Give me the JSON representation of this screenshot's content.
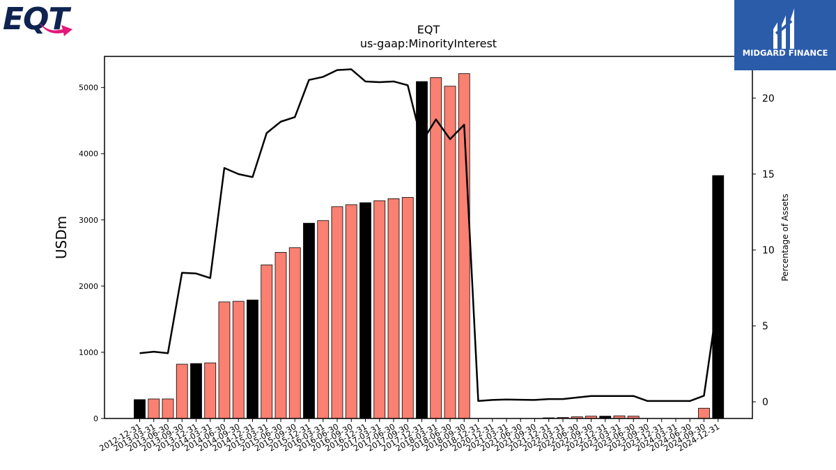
{
  "logos": {
    "eqt_text": "EQT",
    "midgard_text": "MIDGARD FINANCE"
  },
  "chart_data": {
    "type": "bar",
    "title": "EQT",
    "subtitle": "us-gaap:MinorityInterest",
    "ylabel": "USDm",
    "y2label": "Percentage of Assets",
    "ylim": [
      0,
      5470
    ],
    "y2lim": [
      -1.1,
      22.75
    ],
    "yticks": [
      0,
      1000,
      2000,
      3000,
      4000,
      5000
    ],
    "y2ticks": [
      0,
      5,
      10,
      15,
      20
    ],
    "colors": {
      "bar_default": "#fa8072",
      "bar_year_end": "#000000",
      "line": "#000000"
    },
    "categories": [
      "2012-12-31",
      "2013-03-31",
      "2013-06-30",
      "2013-09-30",
      "2013-12-31",
      "2014-03-31",
      "2014-06-30",
      "2014-09-30",
      "2014-12-31",
      "2015-03-31",
      "2015-06-30",
      "2015-09-30",
      "2015-12-31",
      "2016-03-31",
      "2016-06-30",
      "2016-09-30",
      "2016-12-31",
      "2017-03-31",
      "2017-06-30",
      "2017-09-30",
      "2017-12-31",
      "2018-03-31",
      "2018-06-30",
      "2018-09-30",
      "2018-12-31",
      "2020-12-31",
      "2021-03-31",
      "2021-06-30",
      "2021-09-30",
      "2021-12-31",
      "2022-03-31",
      "2022-06-30",
      "2022-09-30",
      "2022-12-31",
      "2023-03-31",
      "2023-06-30",
      "2023-09-30",
      "2023-12-31",
      "2024-03-31",
      "2024-06-30",
      "2024-09-30",
      "2024-12-31"
    ],
    "series": [
      {
        "type": "bar",
        "values": [
          285,
          295,
          295,
          820,
          830,
          840,
          1760,
          1770,
          1790,
          2320,
          2510,
          2580,
          2950,
          2990,
          3200,
          3230,
          3260,
          3290,
          3320,
          3340,
          5090,
          5150,
          5020,
          5210,
          0,
          0,
          0,
          0,
          0,
          10,
          15,
          25,
          35,
          35,
          40,
          35,
          0,
          0,
          0,
          0,
          155,
          3670
        ]
      },
      {
        "type": "line",
        "values": [
          3.2,
          3.3,
          3.2,
          8.5,
          8.45,
          8.15,
          15.4,
          15.0,
          14.8,
          17.7,
          18.45,
          18.75,
          21.2,
          21.4,
          21.85,
          21.9,
          21.1,
          21.05,
          21.1,
          20.85,
          17.1,
          18.6,
          17.3,
          18.25,
          0.05,
          0.12,
          0.15,
          0.13,
          0.12,
          0.18,
          0.18,
          0.28,
          0.38,
          0.38,
          0.38,
          0.38,
          0.05,
          0.05,
          0.05,
          0.05,
          0.4,
          6.85
        ]
      }
    ]
  }
}
